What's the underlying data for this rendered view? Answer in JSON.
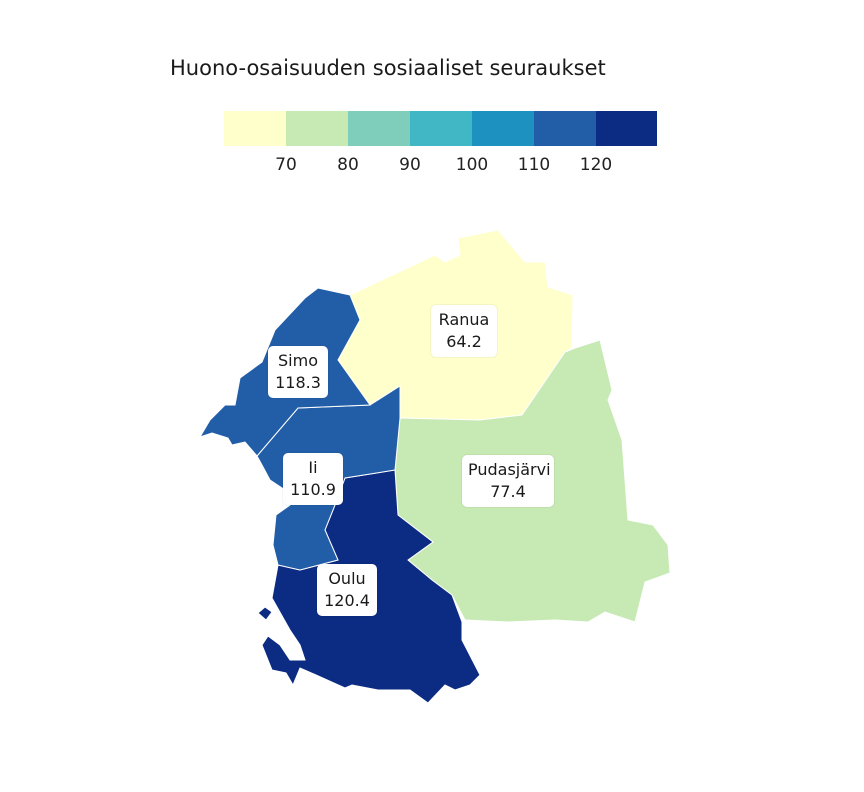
{
  "title": "Huono-osaisuuden sosiaaliset seuraukset",
  "legend": {
    "colors": [
      "#ffffcc",
      "#c7e9b4",
      "#7fcdbb",
      "#41b6c4",
      "#1d91c0",
      "#225ea8",
      "#0c2c84"
    ],
    "ticks": [
      "70",
      "80",
      "90",
      "100",
      "110",
      "120"
    ]
  },
  "municipalities": [
    {
      "name": "Ranua",
      "value": "64.2",
      "color": "#ffffcc"
    },
    {
      "name": "Simo",
      "value": "118.3",
      "color": "#225ea8"
    },
    {
      "name": "Ii",
      "value": "110.9",
      "color": "#225ea8"
    },
    {
      "name": "Pudasjärvi",
      "value": "77.4",
      "color": "#c7e9b4"
    },
    {
      "name": "Oulu",
      "value": "120.4",
      "color": "#0c2c84"
    }
  ]
}
